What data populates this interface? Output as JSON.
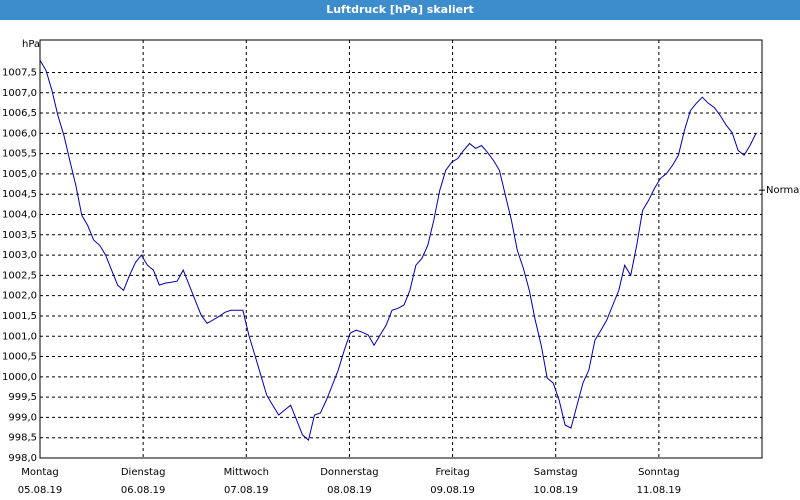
{
  "chart_data": {
    "type": "line",
    "title": "Luftdruck [hPa] skaliert",
    "y_unit": "hPa",
    "ylim": [
      998.0,
      1008.3
    ],
    "yticks": [
      {
        "value": 998.0,
        "label": "998,0"
      },
      {
        "value": 998.5,
        "label": "998,5"
      },
      {
        "value": 999.0,
        "label": "999,0"
      },
      {
        "value": 999.5,
        "label": "999,5"
      },
      {
        "value": 1000.0,
        "label": "1000,0"
      },
      {
        "value": 1000.5,
        "label": "1000,5"
      },
      {
        "value": 1001.0,
        "label": "1001,0"
      },
      {
        "value": 1001.5,
        "label": "1001,5"
      },
      {
        "value": 1002.0,
        "label": "1002,0"
      },
      {
        "value": 1002.5,
        "label": "1002,5"
      },
      {
        "value": 1003.0,
        "label": "1003,0"
      },
      {
        "value": 1003.5,
        "label": "1003,5"
      },
      {
        "value": 1004.0,
        "label": "1004,0"
      },
      {
        "value": 1004.5,
        "label": "1004,5"
      },
      {
        "value": 1005.0,
        "label": "1005,0"
      },
      {
        "value": 1005.5,
        "label": "1005,5"
      },
      {
        "value": 1006.0,
        "label": "1006,0"
      },
      {
        "value": 1006.5,
        "label": "1006,5"
      },
      {
        "value": 1007.0,
        "label": "1007,0"
      },
      {
        "value": 1007.5,
        "label": "1007,5"
      }
    ],
    "xticks": [
      {
        "day": "Montag",
        "date": "05.08.19"
      },
      {
        "day": "Dienstag",
        "date": "06.08.19"
      },
      {
        "day": "Mittwoch",
        "date": "07.08.19"
      },
      {
        "day": "Donnerstag",
        "date": "08.08.19"
      },
      {
        "day": "Freitag",
        "date": "09.08.19"
      },
      {
        "day": "Samstag",
        "date": "10.08.19"
      },
      {
        "day": "Sonntag",
        "date": "11.08.19"
      }
    ],
    "grid": true,
    "reference": {
      "label": "Normal",
      "value": 1004.6
    },
    "series": [
      {
        "name": "Luftdruck",
        "color": "#0000a8",
        "values": [
          1007.8,
          1007.55,
          1007.06,
          1006.44,
          1005.95,
          1005.33,
          1004.72,
          1003.98,
          1003.73,
          1003.37,
          1003.24,
          1003.0,
          1002.63,
          1002.26,
          1002.13,
          1002.5,
          1002.82,
          1003.0,
          1002.75,
          1002.63,
          1002.26,
          1002.31,
          1002.33,
          1002.36,
          1002.63,
          1002.26,
          1001.89,
          1001.52,
          1001.32,
          1001.4,
          1001.49,
          1001.59,
          1001.64,
          1001.64,
          1001.64,
          1001.03,
          1000.54,
          1000.04,
          999.55,
          999.3,
          999.06,
          999.18,
          999.3,
          998.94,
          998.57,
          998.44,
          999.06,
          999.11,
          999.43,
          999.8,
          1000.17,
          1000.66,
          1001.08,
          1001.15,
          1001.1,
          1001.03,
          1000.78,
          1001.03,
          1001.27,
          1001.64,
          1001.69,
          1001.77,
          1002.13,
          1002.75,
          1002.92,
          1003.24,
          1003.86,
          1004.6,
          1005.09,
          1005.29,
          1005.38,
          1005.58,
          1005.75,
          1005.63,
          1005.7,
          1005.53,
          1005.33,
          1005.09,
          1004.47,
          1003.86,
          1003.12,
          1002.68,
          1002.13,
          1001.4,
          1000.78,
          999.97,
          999.85,
          999.43,
          998.81,
          998.74,
          999.3,
          999.85,
          1000.17,
          1000.9,
          1001.15,
          1001.4,
          1001.77,
          1002.13,
          1002.75,
          1002.5,
          1003.24,
          1004.1,
          1004.35,
          1004.65,
          1004.89,
          1005.01,
          1005.21,
          1005.46,
          1006.07,
          1006.56,
          1006.74,
          1006.89,
          1006.74,
          1006.64,
          1006.44,
          1006.2,
          1006.02,
          1005.58,
          1005.46,
          1005.7,
          1006.0
        ]
      }
    ]
  }
}
